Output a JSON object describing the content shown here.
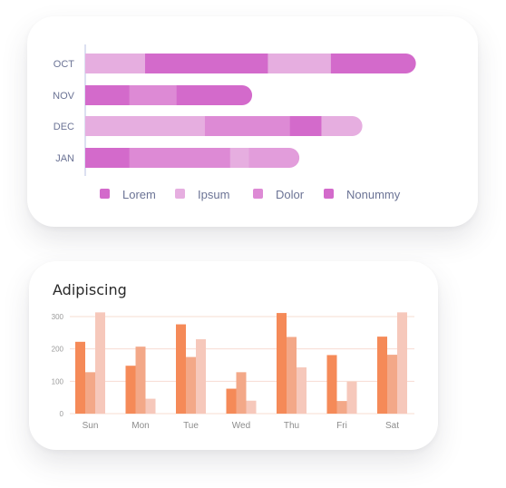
{
  "chart_data": [
    {
      "type": "bar",
      "orientation": "horizontal",
      "stacked": true,
      "title": "",
      "categories": [
        "OCT",
        "NOV",
        "DEC",
        "JAN"
      ],
      "series": [
        {
          "name": "Lorem",
          "color": "#d36acb",
          "values": [
            0,
            14,
            0,
            14
          ]
        },
        {
          "name": "Ipsum",
          "color": "#e6aee0",
          "values": [
            19,
            0,
            38,
            0
          ]
        },
        {
          "name": "Dolor",
          "color": "#dd8ad5",
          "values": [
            0,
            15,
            27,
            32
          ]
        },
        {
          "name": "Nonummy",
          "color": "#d36acb",
          "values": [
            39,
            24,
            10,
            0
          ]
        },
        {
          "name": "",
          "color": "#e6aee0",
          "values": [
            20,
            0,
            13,
            6
          ]
        },
        {
          "name": "",
          "color": "#e29ddb",
          "values": [
            0,
            0,
            0,
            16
          ]
        },
        {
          "name": "",
          "color": "#d36acb",
          "values": [
            27,
            0,
            0,
            0
          ]
        }
      ],
      "xlim": [
        0,
        110
      ],
      "legend": "bottom",
      "grid": false
    },
    {
      "type": "bar",
      "title": "Adipiscing",
      "categories": [
        "Sun",
        "Mon",
        "Tue",
        "Wed",
        "Thu",
        "Fri",
        "Sat"
      ],
      "series": [
        {
          "name": "",
          "color": "#f58a58",
          "values": [
            222,
            148,
            276,
            77,
            311,
            181,
            238
          ]
        },
        {
          "name": "",
          "color": "#f3a888",
          "values": [
            128,
            207,
            175,
            128,
            237,
            39,
            182
          ]
        },
        {
          "name": "",
          "color": "#f6c8bb",
          "values": [
            313,
            46,
            230,
            40,
            143,
            99,
            313
          ]
        }
      ],
      "yticks": [
        0,
        100,
        200,
        300
      ],
      "ylim": [
        0,
        330
      ],
      "grid": true,
      "grid_color": "#f7dcd2"
    }
  ]
}
